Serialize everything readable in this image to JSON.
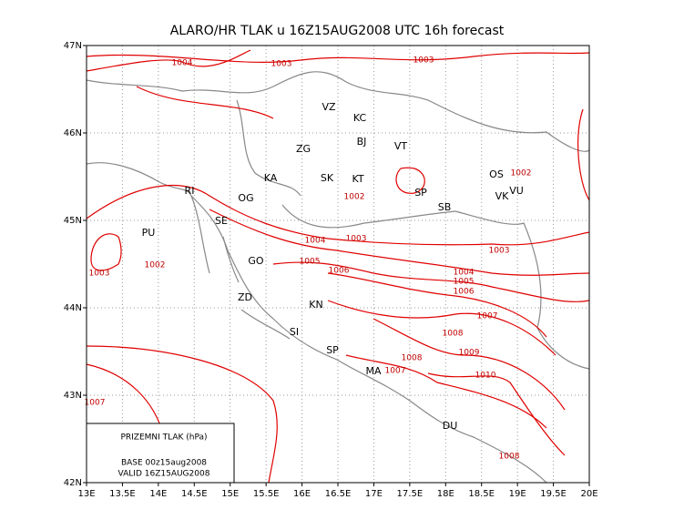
{
  "map": {
    "title": "ALARO/HR TLAK u 16Z15AUG2008 UTC 16h forecast",
    "xlim": [
      13,
      20
    ],
    "ylim": [
      42,
      47
    ],
    "xticks": [
      {
        "value": 13,
        "label": "13E"
      },
      {
        "value": 13.5,
        "label": "13.5E"
      },
      {
        "value": 14,
        "label": "14E"
      },
      {
        "value": 14.5,
        "label": "14.5E"
      },
      {
        "value": 15,
        "label": "15E"
      },
      {
        "value": 15.5,
        "label": "15.5E"
      },
      {
        "value": 16,
        "label": "16E"
      },
      {
        "value": 16.5,
        "label": "16.5E"
      },
      {
        "value": 17,
        "label": "17E"
      },
      {
        "value": 17.5,
        "label": "17.5E"
      },
      {
        "value": 18,
        "label": "18E"
      },
      {
        "value": 18.5,
        "label": "18.5E"
      },
      {
        "value": 19,
        "label": "19E"
      },
      {
        "value": 19.5,
        "label": "19.5E"
      },
      {
        "value": 20,
        "label": "20E"
      }
    ],
    "yticks": [
      {
        "value": 42,
        "label": "42N"
      },
      {
        "value": 43,
        "label": "43N"
      },
      {
        "value": 44,
        "label": "44N"
      },
      {
        "value": 45,
        "label": "45N"
      },
      {
        "value": 46,
        "label": "46N"
      },
      {
        "value": 47,
        "label": "47N"
      }
    ],
    "cities": [
      "VZ",
      "KC",
      "BJ",
      "VT",
      "ZG",
      "KA",
      "SK",
      "KT",
      "SP",
      "OS",
      "VK",
      "VU",
      "SB",
      "RI",
      "OG",
      "SE",
      "PU",
      "GO",
      "ZD",
      "KN",
      "SI",
      "SP",
      "MA",
      "DU"
    ],
    "contour_labels": [
      1004,
      1003,
      1003,
      1002,
      1002,
      1004,
      1003,
      1005,
      1006,
      1003,
      1004,
      1005,
      1006,
      1007,
      1002,
      1003,
      1008,
      1009,
      1008,
      1007,
      1010,
      1007,
      1008
    ],
    "legend": {
      "variable": "PRIZEMNI TLAK (hPa)",
      "base": "BASE 00z15aug2008",
      "valid": "VALID 16Z15AUG2008"
    }
  }
}
